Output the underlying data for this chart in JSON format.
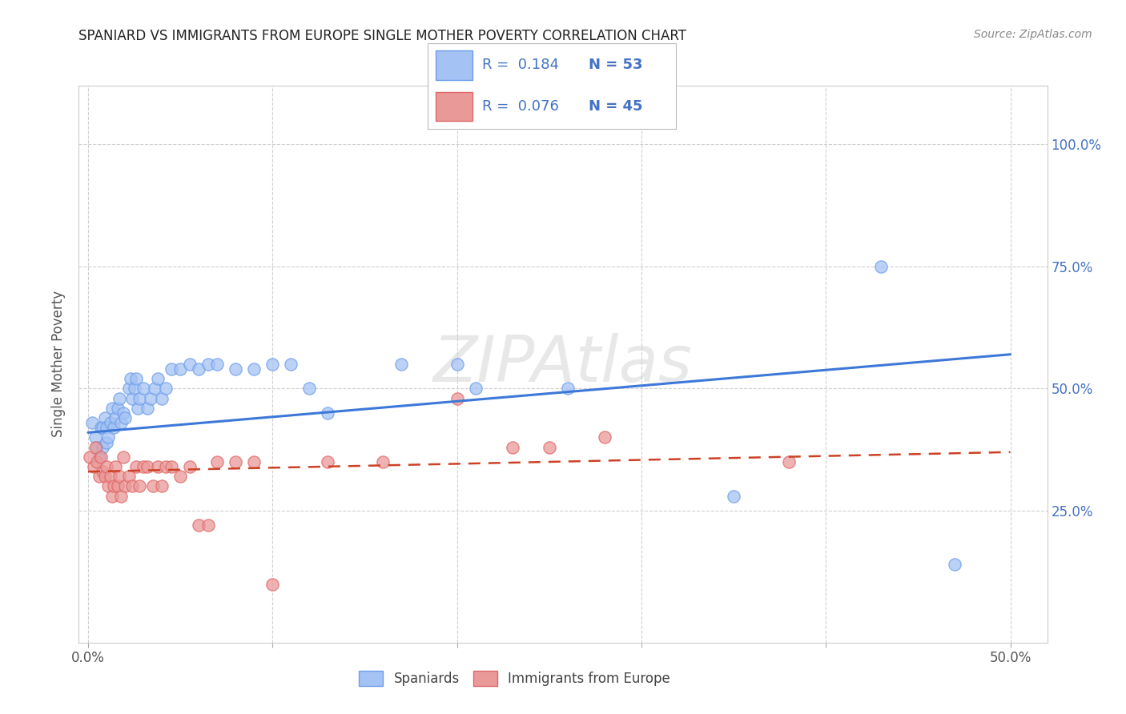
{
  "title": "SPANIARD VS IMMIGRANTS FROM EUROPE SINGLE MOTHER POVERTY CORRELATION CHART",
  "source": "Source: ZipAtlas.com",
  "ylabel": "Single Mother Poverty",
  "xlim": [
    -0.005,
    0.52
  ],
  "ylim": [
    -0.02,
    1.12
  ],
  "xtick_positions": [
    0.0,
    0.1,
    0.2,
    0.3,
    0.4,
    0.5
  ],
  "xticklabels": [
    "0.0%",
    "",
    "",
    "",
    "",
    "50.0%"
  ],
  "ytick_positions": [
    0.25,
    0.5,
    0.75,
    1.0
  ],
  "ytick_labels": [
    "25.0%",
    "50.0%",
    "75.0%",
    "100.0%"
  ],
  "color_blue_fill": "#a4c2f4",
  "color_blue_edge": "#6d9eeb",
  "color_pink_fill": "#ea9999",
  "color_pink_edge": "#e06666",
  "color_line_blue": "#3d78d8",
  "color_line_pink": "#cc4125",
  "watermark_text": "ZIPAtlas",
  "spaniards_x": [
    0.002,
    0.004,
    0.005,
    0.006,
    0.007,
    0.008,
    0.008,
    0.009,
    0.01,
    0.01,
    0.011,
    0.012,
    0.013,
    0.014,
    0.015,
    0.016,
    0.017,
    0.018,
    0.019,
    0.02,
    0.022,
    0.023,
    0.024,
    0.025,
    0.026,
    0.027,
    0.028,
    0.03,
    0.032,
    0.034,
    0.036,
    0.038,
    0.04,
    0.042,
    0.045,
    0.05,
    0.055,
    0.06,
    0.065,
    0.07,
    0.08,
    0.09,
    0.1,
    0.11,
    0.12,
    0.13,
    0.17,
    0.2,
    0.21,
    0.26,
    0.35,
    0.43,
    0.47
  ],
  "spaniards_y": [
    0.43,
    0.4,
    0.38,
    0.36,
    0.42,
    0.42,
    0.38,
    0.44,
    0.39,
    0.42,
    0.4,
    0.43,
    0.46,
    0.42,
    0.44,
    0.46,
    0.48,
    0.43,
    0.45,
    0.44,
    0.5,
    0.52,
    0.48,
    0.5,
    0.52,
    0.46,
    0.48,
    0.5,
    0.46,
    0.48,
    0.5,
    0.52,
    0.48,
    0.5,
    0.54,
    0.54,
    0.55,
    0.54,
    0.55,
    0.55,
    0.54,
    0.54,
    0.55,
    0.55,
    0.5,
    0.45,
    0.55,
    0.55,
    0.5,
    0.5,
    0.28,
    0.75,
    0.14
  ],
  "immigrants_x": [
    0.001,
    0.003,
    0.004,
    0.005,
    0.006,
    0.007,
    0.008,
    0.009,
    0.01,
    0.011,
    0.012,
    0.013,
    0.014,
    0.015,
    0.016,
    0.017,
    0.018,
    0.019,
    0.02,
    0.022,
    0.024,
    0.026,
    0.028,
    0.03,
    0.032,
    0.035,
    0.038,
    0.04,
    0.042,
    0.045,
    0.05,
    0.055,
    0.06,
    0.065,
    0.07,
    0.08,
    0.09,
    0.1,
    0.13,
    0.16,
    0.2,
    0.23,
    0.25,
    0.28,
    0.38
  ],
  "immigrants_y": [
    0.36,
    0.34,
    0.38,
    0.35,
    0.32,
    0.36,
    0.33,
    0.32,
    0.34,
    0.3,
    0.32,
    0.28,
    0.3,
    0.34,
    0.3,
    0.32,
    0.28,
    0.36,
    0.3,
    0.32,
    0.3,
    0.34,
    0.3,
    0.34,
    0.34,
    0.3,
    0.34,
    0.3,
    0.34,
    0.34,
    0.32,
    0.34,
    0.22,
    0.22,
    0.35,
    0.35,
    0.35,
    0.1,
    0.35,
    0.35,
    0.48,
    0.38,
    0.38,
    0.4,
    0.35
  ],
  "spaniard_trend_x": [
    0.0,
    0.5
  ],
  "spaniard_trend_y": [
    0.41,
    0.57
  ],
  "immigrant_trend_x": [
    0.0,
    0.5
  ],
  "immigrant_trend_y": [
    0.33,
    0.37
  ],
  "background_color": "#ffffff",
  "grid_color": "#d0d0d0"
}
